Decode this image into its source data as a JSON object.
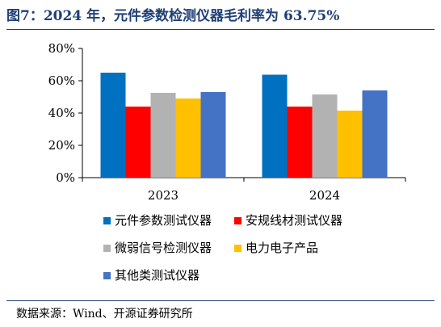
{
  "title": "图7：2024 年，元件参数检测仪器毛利率为 63.75%",
  "source": "数据来源：Wind、开源证券研究所",
  "chart_data": {
    "type": "bar",
    "categories": [
      "2023",
      "2024"
    ],
    "series": [
      {
        "name": "元件参数测试仪器",
        "color": "#0070c0",
        "values": [
          65,
          63.75
        ]
      },
      {
        "name": "安规线材测试仪器",
        "color": "#ff0000",
        "values": [
          44,
          44
        ]
      },
      {
        "name": "微弱信号检测仪器",
        "color": "#b2b2b2",
        "values": [
          52.5,
          51.5
        ]
      },
      {
        "name": "电力电子产品",
        "color": "#ffc000",
        "values": [
          49,
          41.5
        ]
      },
      {
        "name": "其他类测试仪器",
        "color": "#4472c4",
        "values": [
          53,
          54
        ]
      }
    ],
    "ylim": [
      0,
      80
    ],
    "yticks": [
      "0%",
      "20%",
      "40%",
      "60%",
      "80%"
    ],
    "legend_position": "bottom",
    "grid": false
  }
}
